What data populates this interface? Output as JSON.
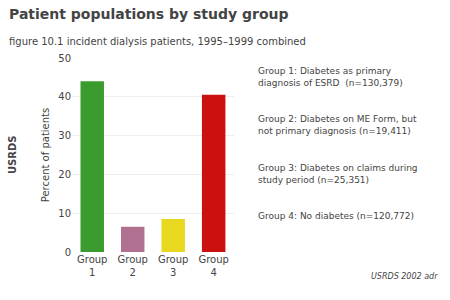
{
  "chart_data": {
    "type": "bar",
    "title": "Patient populations by study group",
    "subtitle": "figure 10.1 incident dialysis patients, 1995–1999 combined",
    "y_label": "Percent of patients",
    "categories": [
      "Group\n1",
      "Group\n2",
      "Group\n3",
      "Group\n4"
    ],
    "values": [
      44,
      6.5,
      8.5,
      40.5
    ],
    "colors": [
      "#3a9c2e",
      "#b07090",
      "#e8d820",
      "#cc1010"
    ],
    "ylim": [
      0,
      50
    ],
    "yticks": [
      0,
      10,
      20,
      30,
      40,
      50
    ],
    "grid": true,
    "annotations": [
      "USRDS",
      "Group 1: Diabetes as primary\ndiagnosis of ESRD  (n=130,379)",
      "Group 2: Diabetes on ME Form, but\nnot primary diagnosis (n=19,411)",
      "Group 3: Diabetes on claims during\nstudy period (n=25,351)",
      "Group 4: No diabetes (n=120,772)",
      "USRDS 2002 adr"
    ]
  }
}
